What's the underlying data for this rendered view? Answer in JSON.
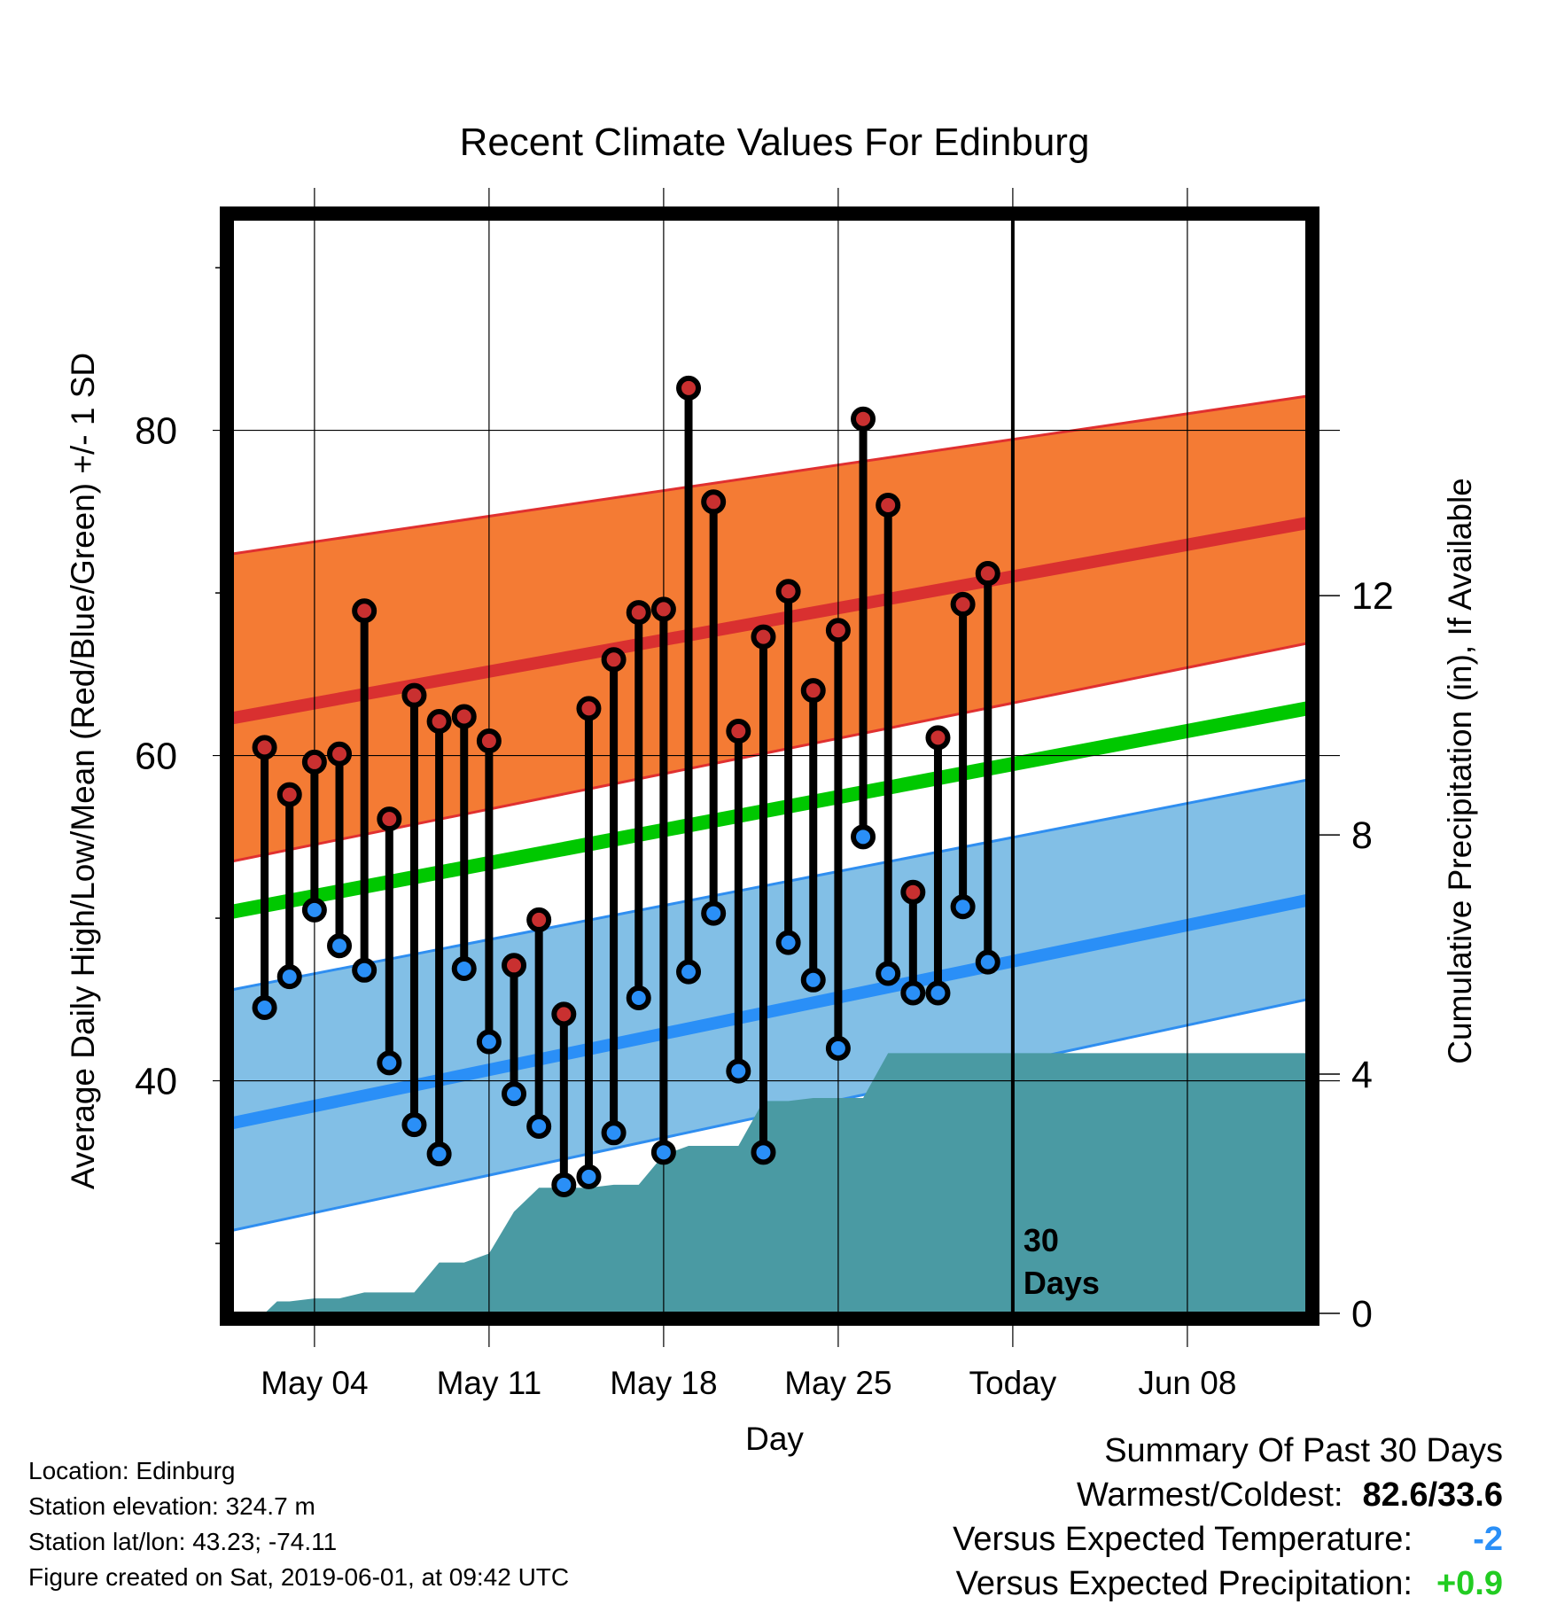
{
  "colors": {
    "high_band": "#f47b34",
    "high_band_edge": "#e03030",
    "high_mean_line": "#d93030",
    "low_band": "#82bfe6",
    "low_band_edge": "#2f8ef0",
    "low_mean_line": "#2a8ff7",
    "mean_line": "#00c800",
    "precip_fill": "#4a9aa3",
    "high_marker": "#c93030",
    "low_marker": "#2a8ff7",
    "summary_temp": "#2a8ff7",
    "summary_precip": "#22cc22"
  },
  "chart_data": {
    "type": "line",
    "title": "Recent Climate Values For Edinburg",
    "xlabel": "Day",
    "ylabel": "Average Daily High/Low/Mean (Red/Blue/Green) +/- 1 SD",
    "y2label": "Cumulative Precipitation (in), If Available",
    "x_tick_labels": [
      "May 04",
      "May 11",
      "May 18",
      "May 25",
      "Today",
      "Jun 08"
    ],
    "x_tick_days": [
      4,
      11,
      18,
      25,
      32,
      39
    ],
    "xlim_days": [
      0.7,
      43.8
    ],
    "today_day": 32,
    "today_label": "30 Days",
    "ylim": [
      25.7,
      93.0
    ],
    "y_ticks_labeled": [
      40,
      60,
      80
    ],
    "y_ticks_minor": [
      30,
      50,
      70,
      90
    ],
    "y2lim": [
      0,
      18.3
    ],
    "y2_ticks": [
      0,
      4,
      8,
      12
    ],
    "grid": true,
    "days": [
      2,
      3,
      4,
      5,
      6,
      7,
      8,
      9,
      10,
      11,
      12,
      13,
      14,
      15,
      16,
      17,
      18,
      19,
      20,
      21,
      22,
      23,
      24,
      25,
      26,
      27,
      28,
      29,
      30,
      31
    ],
    "observed_high": [
      60.5,
      57.6,
      59.6,
      60.1,
      68.9,
      56.1,
      63.7,
      62.1,
      62.4,
      60.9,
      47.1,
      49.9,
      44.1,
      62.9,
      65.9,
      68.8,
      69.0,
      82.6,
      75.6,
      61.5,
      67.3,
      70.1,
      64.0,
      67.7,
      80.7,
      75.4,
      51.6,
      61.1,
      69.3,
      71.2
    ],
    "observed_low": [
      44.5,
      46.4,
      50.5,
      48.3,
      46.8,
      41.1,
      37.3,
      35.5,
      46.9,
      42.4,
      39.2,
      37.2,
      33.6,
      34.1,
      36.8,
      45.1,
      35.6,
      46.7,
      50.3,
      40.6,
      35.6,
      48.5,
      46.2,
      42.0,
      55.0,
      46.6,
      45.4,
      45.4,
      50.7,
      47.3
    ],
    "normal_high": {
      "x": [
        0.7,
        43.8
      ],
      "values": [
        62.3,
        74.3
      ]
    },
    "normal_high_band": {
      "x": [
        0.7,
        43.8
      ],
      "upper": [
        72.4,
        82.1
      ],
      "lower": [
        53.5,
        66.9
      ]
    },
    "normal_low": {
      "x": [
        0.7,
        43.8
      ],
      "values": [
        37.4,
        51.1
      ]
    },
    "normal_low_band": {
      "x": [
        0.7,
        43.8
      ],
      "upper": [
        45.6,
        58.5
      ],
      "lower": [
        30.8,
        45.0
      ]
    },
    "normal_mean": {
      "x": [
        0.7,
        43.8
      ],
      "values": [
        50.4,
        62.9
      ]
    },
    "cumulative_precip": {
      "x": [
        0.7,
        2,
        2.5,
        3,
        4,
        5,
        6,
        7,
        8,
        9,
        10,
        11,
        12,
        13,
        14,
        15,
        16,
        17,
        18,
        19,
        20,
        21,
        22,
        23,
        24,
        25,
        26,
        27,
        28,
        29,
        30,
        31,
        32,
        33,
        43.8
      ],
      "y": [
        0.0,
        0.0,
        0.2,
        0.2,
        0.25,
        0.25,
        0.35,
        0.35,
        0.35,
        0.85,
        0.85,
        1.0,
        1.7,
        2.1,
        2.1,
        2.1,
        2.15,
        2.15,
        2.65,
        2.8,
        2.8,
        2.8,
        3.55,
        3.55,
        3.6,
        3.6,
        3.6,
        4.35,
        4.35,
        4.35,
        4.35,
        4.35,
        4.35,
        4.35,
        4.35
      ]
    }
  },
  "footer": {
    "location": "Location: Edinburg",
    "elevation": "Station elevation: 324.7 m",
    "latlon": "Station lat/lon: 43.23; -74.11",
    "created": "Figure created on Sat, 2019-06-01, at 09:42 UTC"
  },
  "summary": {
    "title": "Summary Of Past 30 Days",
    "warmest_coldest_label": "Warmest/Coldest:",
    "warmest_coldest_value": "82.6/33.6",
    "temp_label": "Versus Expected Temperature:",
    "temp_value": "-2",
    "precip_label": "Versus Expected Precipitation:",
    "precip_value": "+0.9"
  }
}
